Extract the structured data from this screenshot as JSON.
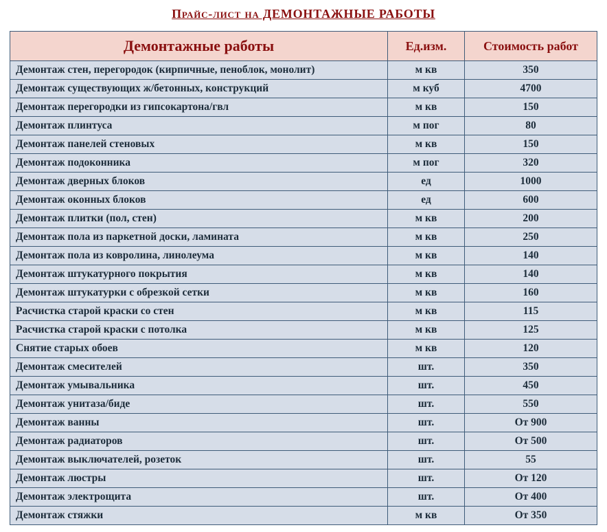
{
  "page": {
    "title": "Прайс-лист на ДЕМОНТАЖНЫЕ  РАБОТЫ",
    "title_color": "#8a1010",
    "background_color": "#ffffff"
  },
  "table": {
    "border_color": "#3e5b78",
    "header_bg": "#f4d5ce",
    "header_color": "#8a1010",
    "row_bg": "#d6dde8",
    "row_text_color": "#1c2c3a",
    "columns": [
      {
        "label": "Демонтажные работы"
      },
      {
        "label": "Ед.изм."
      },
      {
        "label": "Стоимость работ"
      }
    ],
    "rows": [
      {
        "name": "Демонтаж стен, перегородок (кирпичные, пеноблок, монолит)",
        "unit": "м кв",
        "price": "350"
      },
      {
        "name": "Демонтаж существующих ж/бетонных, конструкций",
        "unit": "м куб",
        "price": "4700"
      },
      {
        "name": "Демонтаж перегородки из гипсокартона/гвл",
        "unit": "м кв",
        "price": "150"
      },
      {
        "name": "Демонтаж плинтуса",
        "unit": "м пог",
        "price": "80"
      },
      {
        "name": "Демонтаж панелей стеновых",
        "unit": "м кв",
        "price": "150"
      },
      {
        "name": "Демонтаж подоконника",
        "unit": "м пог",
        "price": "320"
      },
      {
        "name": "Демонтаж дверных блоков",
        "unit": "ед",
        "price": "1000"
      },
      {
        "name": "Демонтаж оконных блоков",
        "unit": "ед",
        "price": "600"
      },
      {
        "name": "Демонтаж плитки (пол, стен)",
        "unit": "м кв",
        "price": "200"
      },
      {
        "name": "Демонтаж пола из паркетной доски, ламината",
        "unit": "м кв",
        "price": "250"
      },
      {
        "name": "Демонтаж пола из ковролина, линолеума",
        "unit": "м кв",
        "price": "140"
      },
      {
        "name": "Демонтаж штукатурного покрытия",
        "unit": "м кв",
        "price": "140"
      },
      {
        "name": "Демонтаж штукатурки с обрезкой сетки",
        "unit": "м кв",
        "price": "160"
      },
      {
        "name": "Расчистка старой краски со стен",
        "unit": "м кв",
        "price": "115"
      },
      {
        "name": "Расчистка старой краски с потолка",
        "unit": "м кв",
        "price": "125"
      },
      {
        "name": "Снятие старых обоев",
        "unit": "м кв",
        "price": "120"
      },
      {
        "name": "Демонтаж смесителей",
        "unit": "шт.",
        "price": "350"
      },
      {
        "name": "Демонтаж умывальника",
        "unit": "шт.",
        "price": "450"
      },
      {
        "name": "Демонтаж унитаза/биде",
        "unit": "шт.",
        "price": "550"
      },
      {
        "name": "Демонтаж ванны",
        "unit": "шт.",
        "price": "От 900"
      },
      {
        "name": "Демонтаж радиаторов",
        "unit": "шт.",
        "price": "От 500"
      },
      {
        "name": "Демонтаж выключателей, розеток",
        "unit": "шт.",
        "price": "55"
      },
      {
        "name": "Демонтаж люстры",
        "unit": "шт.",
        "price": "От 120"
      },
      {
        "name": "Демонтаж электрощита",
        "unit": "шт.",
        "price": "От 400"
      },
      {
        "name": "Демонтаж стяжки",
        "unit": "м кв",
        "price": "От 350"
      }
    ]
  }
}
